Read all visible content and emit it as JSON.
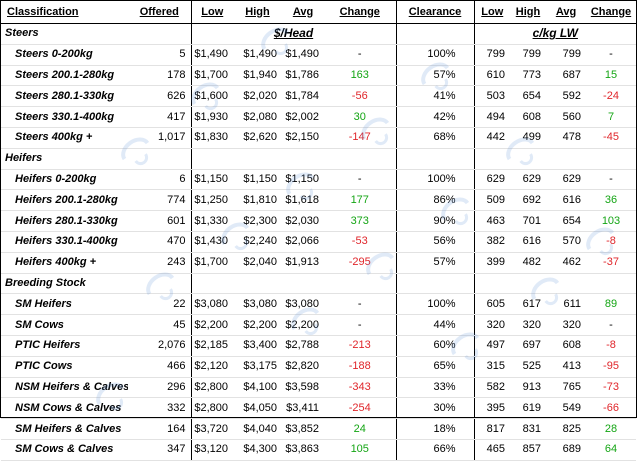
{
  "headers": {
    "classification": "Classification",
    "offered": "Offered",
    "low": "Low",
    "high": "High",
    "avg": "Avg",
    "change": "Change",
    "clearance": "Clearance",
    "low2": "Low",
    "high2": "High",
    "avg2": "Avg",
    "change2": "Change"
  },
  "units": {
    "per_head": "$/Head",
    "per_kg": "c/kg LW"
  },
  "sections": [
    {
      "name": "Steers",
      "rows": [
        {
          "cls": "Steers 0-200kg",
          "offered": "5",
          "low": "$1,490",
          "high": "$1,490",
          "avg": "$1,490",
          "change": "-",
          "clearance": "100%",
          "low2": "799",
          "high2": "799",
          "avg2": "799",
          "change2": "-"
        },
        {
          "cls": "Steers 200.1-280kg",
          "offered": "178",
          "low": "$1,700",
          "high": "$1,940",
          "avg": "$1,786",
          "change": "163",
          "clearance": "57%",
          "low2": "610",
          "high2": "773",
          "avg2": "687",
          "change2": "15"
        },
        {
          "cls": "Steers 280.1-330kg",
          "offered": "626",
          "low": "$1,600",
          "high": "$2,020",
          "avg": "$1,784",
          "change": "-56",
          "clearance": "41%",
          "low2": "503",
          "high2": "654",
          "avg2": "592",
          "change2": "-24"
        },
        {
          "cls": "Steers 330.1-400kg",
          "offered": "417",
          "low": "$1,930",
          "high": "$2,080",
          "avg": "$2,002",
          "change": "30",
          "clearance": "42%",
          "low2": "494",
          "high2": "608",
          "avg2": "560",
          "change2": "7"
        },
        {
          "cls": "Steers 400kg +",
          "offered": "1,017",
          "low": "$1,830",
          "high": "$2,620",
          "avg": "$2,150",
          "change": "-147",
          "clearance": "68%",
          "low2": "442",
          "high2": "499",
          "avg2": "478",
          "change2": "-45"
        }
      ]
    },
    {
      "name": "Heifers",
      "rows": [
        {
          "cls": "Heifers 0-200kg",
          "offered": "6",
          "low": "$1,150",
          "high": "$1,150",
          "avg": "$1,150",
          "change": "-",
          "clearance": "100%",
          "low2": "629",
          "high2": "629",
          "avg2": "629",
          "change2": "-"
        },
        {
          "cls": "Heifers 200.1-280kg",
          "offered": "774",
          "low": "$1,250",
          "high": "$1,810",
          "avg": "$1,618",
          "change": "177",
          "clearance": "86%",
          "low2": "509",
          "high2": "692",
          "avg2": "616",
          "change2": "36"
        },
        {
          "cls": "Heifers 280.1-330kg",
          "offered": "601",
          "low": "$1,330",
          "high": "$2,300",
          "avg": "$2,030",
          "change": "373",
          "clearance": "90%",
          "low2": "463",
          "high2": "701",
          "avg2": "654",
          "change2": "103"
        },
        {
          "cls": "Heifers 330.1-400kg",
          "offered": "470",
          "low": "$1,430",
          "high": "$2,240",
          "avg": "$2,066",
          "change": "-53",
          "clearance": "56%",
          "low2": "382",
          "high2": "616",
          "avg2": "570",
          "change2": "-8"
        },
        {
          "cls": "Heifers 400kg +",
          "offered": "243",
          "low": "$1,700",
          "high": "$2,040",
          "avg": "$1,913",
          "change": "-295",
          "clearance": "57%",
          "low2": "399",
          "high2": "482",
          "avg2": "462",
          "change2": "-37"
        }
      ]
    },
    {
      "name": "Breeding Stock",
      "rows": [
        {
          "cls": "SM Heifers",
          "offered": "22",
          "low": "$3,080",
          "high": "$3,080",
          "avg": "$3,080",
          "change": "-",
          "clearance": "100%",
          "low2": "605",
          "high2": "617",
          "avg2": "611",
          "change2": "89"
        },
        {
          "cls": "SM Cows",
          "offered": "45",
          "low": "$2,200",
          "high": "$2,200",
          "avg": "$2,200",
          "change": "-",
          "clearance": "44%",
          "low2": "320",
          "high2": "320",
          "avg2": "320",
          "change2": "-"
        },
        {
          "cls": "PTIC Heifers",
          "offered": "2,076",
          "low": "$2,185",
          "high": "$3,400",
          "avg": "$2,788",
          "change": "-213",
          "clearance": "60%",
          "low2": "497",
          "high2": "697",
          "avg2": "608",
          "change2": "-8"
        },
        {
          "cls": "PTIC Cows",
          "offered": "466",
          "low": "$2,120",
          "high": "$3,175",
          "avg": "$2,820",
          "change": "-188",
          "clearance": "65%",
          "low2": "315",
          "high2": "525",
          "avg2": "413",
          "change2": "-95"
        },
        {
          "cls": "NSM Heifers & Calves",
          "offered": "296",
          "low": "$2,800",
          "high": "$4,100",
          "avg": "$3,598",
          "change": "-343",
          "clearance": "33%",
          "low2": "582",
          "high2": "913",
          "avg2": "765",
          "change2": "-73"
        },
        {
          "cls": "NSM Cows & Calves",
          "offered": "332",
          "low": "$2,800",
          "high": "$4,050",
          "avg": "$3,411",
          "change": "-254",
          "clearance": "30%",
          "low2": "395",
          "high2": "619",
          "avg2": "549",
          "change2": "-66"
        },
        {
          "cls": "SM Heifers & Calves",
          "offered": "164",
          "low": "$3,720",
          "high": "$4,040",
          "avg": "$3,852",
          "change": "24",
          "clearance": "18%",
          "low2": "817",
          "high2": "831",
          "avg2": "825",
          "change2": "28"
        },
        {
          "cls": "SM Cows & Calves",
          "offered": "347",
          "low": "$3,120",
          "high": "$4,300",
          "avg": "$3,863",
          "change": "105",
          "clearance": "66%",
          "low2": "465",
          "high2": "857",
          "avg2": "689",
          "change2": "64"
        }
      ]
    }
  ],
  "colors": {
    "positive": "#14a514",
    "negative": "#e0262b",
    "watermark": "#5b8fd6"
  }
}
